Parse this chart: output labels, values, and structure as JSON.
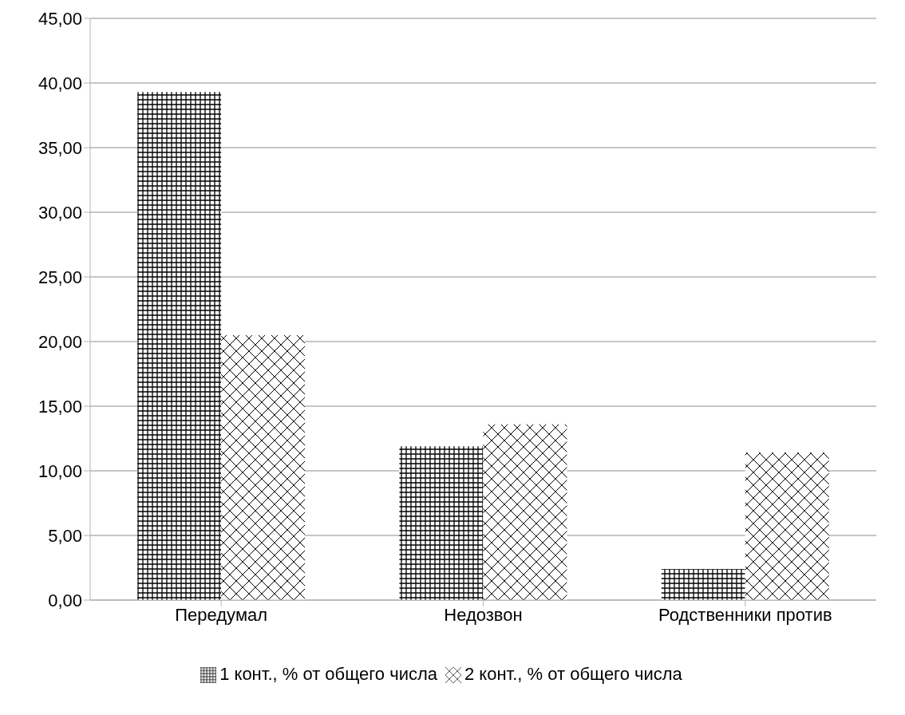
{
  "chart_data": {
    "type": "bar",
    "categories": [
      "Передумал",
      "Недозвон",
      "Родственники против"
    ],
    "series": [
      {
        "name": "1 конт., % от общего числа",
        "color": "#000000",
        "values": [
          39.3,
          11.9,
          2.4
        ]
      },
      {
        "name": "2 конт., % от общего числа",
        "color": "#000000",
        "values": [
          20.5,
          13.6,
          11.4
        ]
      }
    ],
    "ylim": [
      0,
      45
    ],
    "yticks": [
      {
        "value": 0,
        "label": "0,00"
      },
      {
        "value": 5,
        "label": "5,00"
      },
      {
        "value": 10,
        "label": "10,00"
      },
      {
        "value": 15,
        "label": "15,00"
      },
      {
        "value": 20,
        "label": "20,00"
      },
      {
        "value": 25,
        "label": "25,00"
      },
      {
        "value": 30,
        "label": "30,00"
      },
      {
        "value": 35,
        "label": "35,00"
      },
      {
        "value": 40,
        "label": "40,00"
      },
      {
        "value": 45,
        "label": "45,00"
      }
    ],
    "grid": "y",
    "legend": "bottom"
  }
}
